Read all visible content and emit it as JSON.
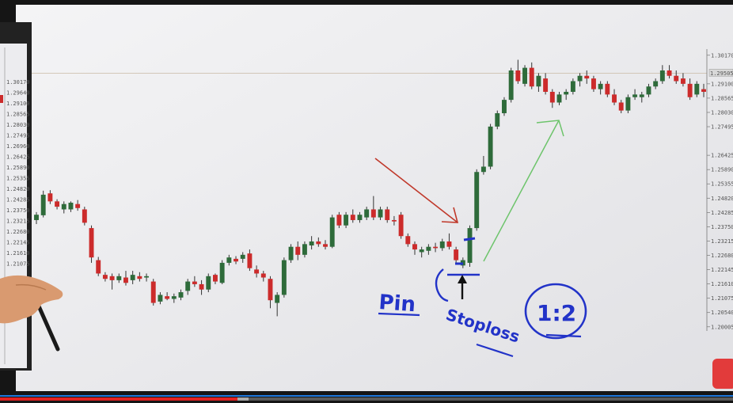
{
  "chart_data": {
    "type": "candlestick",
    "title": "",
    "xlabel": "",
    "ylabel": "",
    "ylim": [
      1.1985,
      1.304
    ],
    "grid": false,
    "price_ticks": [
      "1.30170",
      "1.29100",
      "1.28565",
      "1.28030",
      "1.27495",
      "1.26425",
      "1.25890",
      "1.25355",
      "1.24820",
      "1.24285",
      "1.23750",
      "1.23215",
      "1.22680",
      "1.22145",
      "1.21610",
      "1.21075",
      "1.20540",
      "1.20005"
    ],
    "current_price_label": "1.29505",
    "current_price": 1.295,
    "bull_color": "#2e6b3a",
    "bear_color": "#cc2b2b",
    "candles": [
      {
        "o": 1.24,
        "h": 1.243,
        "l": 1.2385,
        "c": 1.242
      },
      {
        "o": 1.2418,
        "h": 1.251,
        "l": 1.241,
        "c": 1.2495
      },
      {
        "o": 1.25,
        "h": 1.2512,
        "l": 1.246,
        "c": 1.247
      },
      {
        "o": 1.247,
        "h": 1.2478,
        "l": 1.244,
        "c": 1.245
      },
      {
        "o": 1.244,
        "h": 1.247,
        "l": 1.2425,
        "c": 1.246
      },
      {
        "o": 1.244,
        "h": 1.247,
        "l": 1.243,
        "c": 1.2465
      },
      {
        "o": 1.246,
        "h": 1.2475,
        "l": 1.2435,
        "c": 1.2445
      },
      {
        "o": 1.244,
        "h": 1.245,
        "l": 1.238,
        "c": 1.239
      },
      {
        "o": 1.237,
        "h": 1.238,
        "l": 1.224,
        "c": 1.226
      },
      {
        "o": 1.225,
        "h": 1.2262,
        "l": 1.219,
        "c": 1.22
      },
      {
        "o": 1.2195,
        "h": 1.2205,
        "l": 1.217,
        "c": 1.218
      },
      {
        "o": 1.219,
        "h": 1.22,
        "l": 1.214,
        "c": 1.2175
      },
      {
        "o": 1.2175,
        "h": 1.22,
        "l": 1.2165,
        "c": 1.219
      },
      {
        "o": 1.2185,
        "h": 1.221,
        "l": 1.2155,
        "c": 1.2165
      },
      {
        "o": 1.2175,
        "h": 1.221,
        "l": 1.216,
        "c": 1.2195
      },
      {
        "o": 1.219,
        "h": 1.2205,
        "l": 1.217,
        "c": 1.218
      },
      {
        "o": 1.2185,
        "h": 1.22,
        "l": 1.217,
        "c": 1.219
      },
      {
        "o": 1.217,
        "h": 1.218,
        "l": 1.208,
        "c": 1.209
      },
      {
        "o": 1.2095,
        "h": 1.213,
        "l": 1.2085,
        "c": 1.212
      },
      {
        "o": 1.2115,
        "h": 1.213,
        "l": 1.21,
        "c": 1.2105
      },
      {
        "o": 1.2105,
        "h": 1.2125,
        "l": 1.209,
        "c": 1.2115
      },
      {
        "o": 1.211,
        "h": 1.214,
        "l": 1.21,
        "c": 1.213
      },
      {
        "o": 1.2135,
        "h": 1.218,
        "l": 1.212,
        "c": 1.217
      },
      {
        "o": 1.217,
        "h": 1.219,
        "l": 1.215,
        "c": 1.216
      },
      {
        "o": 1.216,
        "h": 1.2175,
        "l": 1.212,
        "c": 1.214
      },
      {
        "o": 1.214,
        "h": 1.22,
        "l": 1.213,
        "c": 1.219
      },
      {
        "o": 1.2195,
        "h": 1.22,
        "l": 1.216,
        "c": 1.217
      },
      {
        "o": 1.2165,
        "h": 1.225,
        "l": 1.216,
        "c": 1.224
      },
      {
        "o": 1.224,
        "h": 1.227,
        "l": 1.223,
        "c": 1.226
      },
      {
        "o": 1.2255,
        "h": 1.2265,
        "l": 1.2235,
        "c": 1.2245
      },
      {
        "o": 1.2255,
        "h": 1.228,
        "l": 1.224,
        "c": 1.227
      },
      {
        "o": 1.2275,
        "h": 1.229,
        "l": 1.221,
        "c": 1.222
      },
      {
        "o": 1.2215,
        "h": 1.223,
        "l": 1.2185,
        "c": 1.22
      },
      {
        "o": 1.22,
        "h": 1.221,
        "l": 1.217,
        "c": 1.2185
      },
      {
        "o": 1.218,
        "h": 1.219,
        "l": 1.207,
        "c": 1.21
      },
      {
        "o": 1.209,
        "h": 1.213,
        "l": 1.204,
        "c": 1.212
      },
      {
        "o": 1.212,
        "h": 1.226,
        "l": 1.211,
        "c": 1.225
      },
      {
        "o": 1.225,
        "h": 1.231,
        "l": 1.224,
        "c": 1.23
      },
      {
        "o": 1.23,
        "h": 1.232,
        "l": 1.225,
        "c": 1.227
      },
      {
        "o": 1.227,
        "h": 1.232,
        "l": 1.226,
        "c": 1.231
      },
      {
        "o": 1.2305,
        "h": 1.234,
        "l": 1.229,
        "c": 1.232
      },
      {
        "o": 1.232,
        "h": 1.2335,
        "l": 1.23,
        "c": 1.231
      },
      {
        "o": 1.231,
        "h": 1.2325,
        "l": 1.229,
        "c": 1.23
      },
      {
        "o": 1.23,
        "h": 1.242,
        "l": 1.2295,
        "c": 1.241
      },
      {
        "o": 1.242,
        "h": 1.243,
        "l": 1.237,
        "c": 1.238
      },
      {
        "o": 1.238,
        "h": 1.243,
        "l": 1.237,
        "c": 1.242
      },
      {
        "o": 1.242,
        "h": 1.244,
        "l": 1.239,
        "c": 1.24
      },
      {
        "o": 1.24,
        "h": 1.243,
        "l": 1.239,
        "c": 1.242
      },
      {
        "o": 1.241,
        "h": 1.245,
        "l": 1.24,
        "c": 1.244
      },
      {
        "o": 1.244,
        "h": 1.249,
        "l": 1.24,
        "c": 1.241
      },
      {
        "o": 1.241,
        "h": 1.245,
        "l": 1.24,
        "c": 1.244
      },
      {
        "o": 1.244,
        "h": 1.245,
        "l": 1.239,
        "c": 1.24
      },
      {
        "o": 1.24,
        "h": 1.2415,
        "l": 1.238,
        "c": 1.2395
      },
      {
        "o": 1.242,
        "h": 1.243,
        "l": 1.233,
        "c": 1.234
      },
      {
        "o": 1.234,
        "h": 1.235,
        "l": 1.23,
        "c": 1.231
      },
      {
        "o": 1.231,
        "h": 1.232,
        "l": 1.227,
        "c": 1.229
      },
      {
        "o": 1.228,
        "h": 1.23,
        "l": 1.226,
        "c": 1.229
      },
      {
        "o": 1.2285,
        "h": 1.231,
        "l": 1.227,
        "c": 1.23
      },
      {
        "o": 1.23,
        "h": 1.2315,
        "l": 1.228,
        "c": 1.2295
      },
      {
        "o": 1.2295,
        "h": 1.233,
        "l": 1.2285,
        "c": 1.232
      },
      {
        "o": 1.232,
        "h": 1.235,
        "l": 1.229,
        "c": 1.23
      },
      {
        "o": 1.229,
        "h": 1.23,
        "l": 1.224,
        "c": 1.225
      },
      {
        "o": 1.223,
        "h": 1.226,
        "l": 1.222,
        "c": 1.225
      },
      {
        "o": 1.224,
        "h": 1.238,
        "l": 1.2225,
        "c": 1.237
      },
      {
        "o": 1.237,
        "h": 1.259,
        "l": 1.236,
        "c": 1.258
      },
      {
        "o": 1.258,
        "h": 1.264,
        "l": 1.257,
        "c": 1.26
      },
      {
        "o": 1.26,
        "h": 1.276,
        "l": 1.259,
        "c": 1.275
      },
      {
        "o": 1.275,
        "h": 1.281,
        "l": 1.274,
        "c": 1.28
      },
      {
        "o": 1.28,
        "h": 1.286,
        "l": 1.279,
        "c": 1.285
      },
      {
        "o": 1.285,
        "h": 1.297,
        "l": 1.284,
        "c": 1.296
      },
      {
        "o": 1.296,
        "h": 1.3,
        "l": 1.291,
        "c": 1.292
      },
      {
        "o": 1.291,
        "h": 1.298,
        "l": 1.29,
        "c": 1.297
      },
      {
        "o": 1.297,
        "h": 1.299,
        "l": 1.289,
        "c": 1.29
      },
      {
        "o": 1.29,
        "h": 1.295,
        "l": 1.288,
        "c": 1.294
      },
      {
        "o": 1.293,
        "h": 1.295,
        "l": 1.287,
        "c": 1.288
      },
      {
        "o": 1.288,
        "h": 1.289,
        "l": 1.282,
        "c": 1.284
      },
      {
        "o": 1.284,
        "h": 1.288,
        "l": 1.283,
        "c": 1.287
      },
      {
        "o": 1.287,
        "h": 1.289,
        "l": 1.285,
        "c": 1.288
      },
      {
        "o": 1.288,
        "h": 1.293,
        "l": 1.287,
        "c": 1.292
      },
      {
        "o": 1.292,
        "h": 1.295,
        "l": 1.29,
        "c": 1.294
      },
      {
        "o": 1.294,
        "h": 1.296,
        "l": 1.291,
        "c": 1.293
      },
      {
        "o": 1.293,
        "h": 1.294,
        "l": 1.288,
        "c": 1.289
      },
      {
        "o": 1.289,
        "h": 1.292,
        "l": 1.287,
        "c": 1.291
      },
      {
        "o": 1.291,
        "h": 1.292,
        "l": 1.286,
        "c": 1.287
      },
      {
        "o": 1.287,
        "h": 1.289,
        "l": 1.283,
        "c": 1.284
      },
      {
        "o": 1.284,
        "h": 1.285,
        "l": 1.28,
        "c": 1.281
      },
      {
        "o": 1.281,
        "h": 1.287,
        "l": 1.28,
        "c": 1.286
      },
      {
        "o": 1.286,
        "h": 1.289,
        "l": 1.285,
        "c": 1.287
      },
      {
        "o": 1.286,
        "h": 1.288,
        "l": 1.284,
        "c": 1.287
      },
      {
        "o": 1.287,
        "h": 1.291,
        "l": 1.286,
        "c": 1.29
      },
      {
        "o": 1.29,
        "h": 1.293,
        "l": 1.289,
        "c": 1.292
      },
      {
        "o": 1.292,
        "h": 1.298,
        "l": 1.291,
        "c": 1.296
      },
      {
        "o": 1.296,
        "h": 1.298,
        "l": 1.293,
        "c": 1.294
      },
      {
        "o": 1.294,
        "h": 1.296,
        "l": 1.291,
        "c": 1.292
      },
      {
        "o": 1.293,
        "h": 1.295,
        "l": 1.29,
        "c": 1.291
      },
      {
        "o": 1.291,
        "h": 1.293,
        "l": 1.285,
        "c": 1.286
      },
      {
        "o": 1.287,
        "h": 1.292,
        "l": 1.286,
        "c": 1.291
      },
      {
        "o": 1.289,
        "h": 1.291,
        "l": 1.286,
        "c": 1.288
      }
    ],
    "annotations": {
      "pin_label": "Pin",
      "stop_label": "Stoploss",
      "ratio_label": "1:2"
    }
  },
  "side_panel": {
    "price_ticks": [
      "1.30170",
      "1.29640",
      "1.29100",
      "1.28565",
      "1.28030",
      "1.27495",
      "1.26960",
      "1.26425",
      "1.25890",
      "1.25355",
      "1.24820",
      "1.24285",
      "1.23750",
      "1.23215",
      "1.22680",
      "1.22145",
      "1.21610",
      "1.21075"
    ]
  }
}
